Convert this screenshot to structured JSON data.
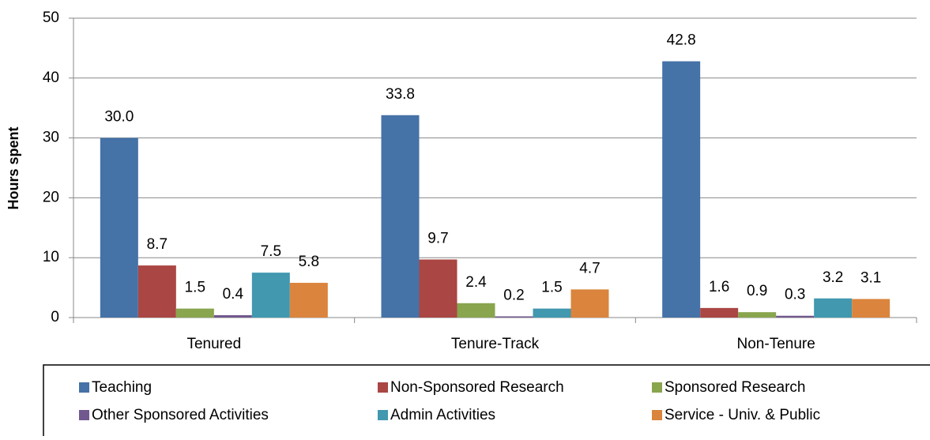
{
  "chart_data": {
    "type": "bar",
    "y_label": "Hours spent",
    "categories": [
      "Tenured",
      "Tenure-Track",
      "Non-Tenure"
    ],
    "series": [
      {
        "name": "Teaching",
        "color": "#4572a7",
        "values": [
          30.0,
          33.8,
          42.8
        ],
        "value_labels": [
          "30.0",
          "33.8",
          "42.8"
        ]
      },
      {
        "name": "Non-Sponsored Research",
        "color": "#aa4643",
        "values": [
          8.7,
          9.7,
          1.6
        ]
      },
      {
        "name": "Sponsored Research",
        "color": "#89a54e",
        "values": [
          1.5,
          2.4,
          0.9
        ]
      },
      {
        "name": "Other Sponsored Activities",
        "color": "#71588f",
        "values": [
          0.4,
          0.2,
          0.3
        ]
      },
      {
        "name": "Admin Activities",
        "color": "#4198af",
        "values": [
          7.5,
          1.5,
          3.2
        ]
      },
      {
        "name": "Service - Univ. & Public",
        "color": "#db843d",
        "values": [
          5.8,
          4.7,
          3.1
        ]
      }
    ],
    "ylim": [
      0,
      50
    ],
    "yticks": [
      0,
      10,
      20,
      30,
      40,
      50
    ],
    "grid": true,
    "legend": "bottom"
  }
}
